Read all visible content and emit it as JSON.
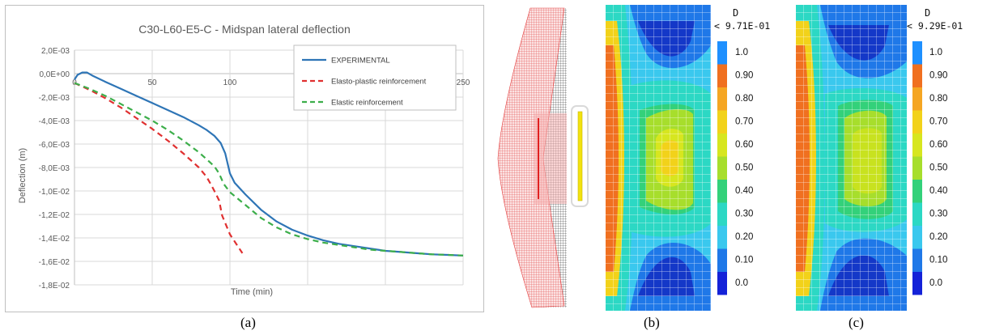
{
  "chart_data": {
    "type": "line",
    "title": "C30-L60-E5-C - Midspan lateral deflection",
    "xlabel": "Time (min)",
    "ylabel": "Deflection (m)",
    "xlim": [
      0,
      250
    ],
    "ylim": [
      -0.018,
      0.002
    ],
    "xticks": [
      0,
      50,
      100,
      150,
      200,
      250
    ],
    "yticks": [
      0.002,
      0.0,
      -0.002,
      -0.004,
      -0.006,
      -0.008,
      -0.01,
      -0.012,
      -0.014,
      -0.016,
      -0.018
    ],
    "ytick_labels": [
      "2,0E-03",
      "0,0E+00",
      "-2,0E-03",
      "-4,0E-03",
      "-6,0E-03",
      "-8,0E-03",
      "-1,0E-02",
      "-1,2E-02",
      "-1,4E-02",
      "-1,6E-02",
      "-1,8E-02"
    ],
    "grid": true,
    "legend_position": "top-right",
    "series": [
      {
        "name": "EXPERIMENTAL",
        "color": "#2e75b6",
        "dash": "solid",
        "x": [
          0,
          2,
          5,
          8,
          12,
          20,
          30,
          40,
          50,
          60,
          70,
          80,
          85,
          90,
          94,
          97,
          100,
          103,
          110,
          120,
          130,
          140,
          150,
          160,
          170,
          180,
          190,
          200,
          210,
          220,
          230,
          240,
          250
        ],
        "y": [
          -0.0005,
          -0.0001,
          0.0001,
          0.0001,
          -0.0002,
          -0.0007,
          -0.0013,
          -0.0019,
          -0.0025,
          -0.0031,
          -0.0037,
          -0.0044,
          -0.0048,
          -0.0053,
          -0.0059,
          -0.0068,
          -0.0085,
          -0.0093,
          -0.0103,
          -0.0116,
          -0.0126,
          -0.0133,
          -0.0138,
          -0.0142,
          -0.0145,
          -0.0147,
          -0.0149,
          -0.0151,
          -0.0152,
          -0.0153,
          -0.0154,
          -0.01545,
          -0.0155
        ]
      },
      {
        "name": "Elasto-plastic reinforcement",
        "color": "#e03030",
        "dash": "dashed",
        "x": [
          0,
          10,
          20,
          30,
          40,
          50,
          60,
          70,
          80,
          85,
          88,
          90,
          93,
          95,
          100,
          105,
          108
        ],
        "y": [
          -0.0008,
          -0.0014,
          -0.0021,
          -0.0029,
          -0.0038,
          -0.0047,
          -0.0057,
          -0.0068,
          -0.008,
          -0.0088,
          -0.0095,
          -0.01,
          -0.0108,
          -0.0121,
          -0.0137,
          -0.0147,
          -0.0153
        ]
      },
      {
        "name": "Elastic reinforcement",
        "color": "#3cae4a",
        "dash": "dashed",
        "x": [
          0,
          10,
          20,
          30,
          40,
          50,
          60,
          70,
          80,
          85,
          90,
          93,
          96,
          100,
          110,
          120,
          130,
          140,
          150,
          160,
          170,
          180,
          190,
          200,
          210,
          220,
          230,
          240,
          250
        ],
        "y": [
          -0.0008,
          -0.0013,
          -0.0019,
          -0.0026,
          -0.0033,
          -0.004,
          -0.0048,
          -0.0057,
          -0.0067,
          -0.0073,
          -0.0079,
          -0.0085,
          -0.0094,
          -0.0101,
          -0.0112,
          -0.0123,
          -0.0131,
          -0.0137,
          -0.0141,
          -0.0144,
          -0.0146,
          -0.0148,
          -0.015,
          -0.0151,
          -0.0152,
          -0.0153,
          -0.0154,
          -0.01545,
          -0.0155
        ]
      }
    ]
  },
  "panels": {
    "a_label": "(a)",
    "b_label": "(b)",
    "c_label": "(c)"
  },
  "colorbar_b": {
    "header": "D",
    "max_text": "< 9.71E-01",
    "levels": [
      "1.0",
      "0.90",
      "0.80",
      "0.70",
      "0.60",
      "0.50",
      "0.40",
      "0.30",
      "0.20",
      "0.10",
      "0.0"
    ]
  },
  "colorbar_c": {
    "header": "D",
    "max_text": "< 9.29E-01",
    "levels": [
      "1.0",
      "0.90",
      "0.80",
      "0.70",
      "0.60",
      "0.50",
      "0.40",
      "0.30",
      "0.20",
      "0.10",
      "0.0"
    ]
  },
  "colors": {
    "scale": [
      "#1e90ff",
      "#f07020",
      "#f5a623",
      "#f2d21a",
      "#d7e61f",
      "#a7de2c",
      "#33d17a",
      "#2cd8c4",
      "#3ac8ee",
      "#1f78e8",
      "#1422d8"
    ]
  }
}
